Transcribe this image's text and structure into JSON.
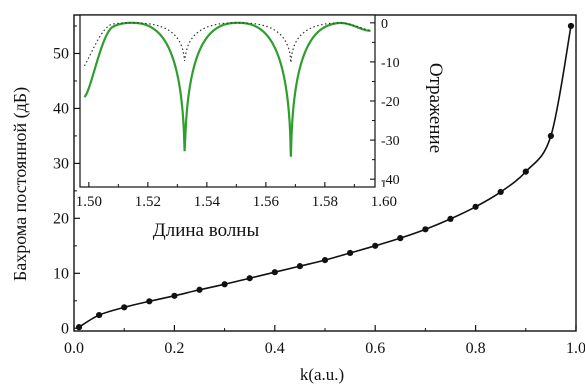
{
  "chart_data": [
    {
      "type": "line",
      "xlabel": "k(a.u.)",
      "ylabel": "Бахрома постоянной (дБ)",
      "xlim": [
        0.0,
        1.0
      ],
      "ylim": [
        -0.5,
        57
      ],
      "xticks": [
        "0.0",
        "0.2",
        "0.4",
        "0.6",
        "0.8",
        "1.0"
      ],
      "yticks": [
        "0",
        "10",
        "20",
        "30",
        "40",
        "50"
      ],
      "series": [
        {
          "x": [
            0.01,
            0.05,
            0.1,
            0.15,
            0.2,
            0.25,
            0.3,
            0.35,
            0.4,
            0.45,
            0.5,
            0.55,
            0.6,
            0.65,
            0.7,
            0.75,
            0.8,
            0.85,
            0.9,
            0.95,
            0.99
          ],
          "y": [
            0.2,
            2.4,
            3.8,
            4.9,
            5.9,
            7.0,
            8.0,
            9.1,
            10.2,
            11.3,
            12.4,
            13.7,
            15.0,
            16.4,
            18.0,
            19.9,
            22.1,
            24.8,
            28.5,
            35.0,
            55.0
          ]
        }
      ]
    },
    {
      "type": "line",
      "inset": true,
      "xlabel": "Длина волны",
      "ylabel": "Отражение",
      "xlim": [
        1.497,
        1.597
      ],
      "ylim": [
        -42,
        2
      ],
      "xticks": [
        "1.50",
        "1.52",
        "1.54",
        "1.56",
        "1.58",
        "1.60"
      ],
      "yticks": [
        "0",
        "-10",
        "-20",
        "-30",
        "-40"
      ],
      "series": [
        {
          "style": "solid",
          "color": "#2e9e2e",
          "notch_depth": -37,
          "notch_centers": [
            1.5325,
            1.5685
          ],
          "start": -19,
          "end": -2
        },
        {
          "style": "dotted",
          "color": "#333333",
          "notch_depth": -11,
          "notch_centers": [
            1.5325,
            1.5685
          ],
          "start": -11,
          "end": -2
        }
      ]
    }
  ]
}
